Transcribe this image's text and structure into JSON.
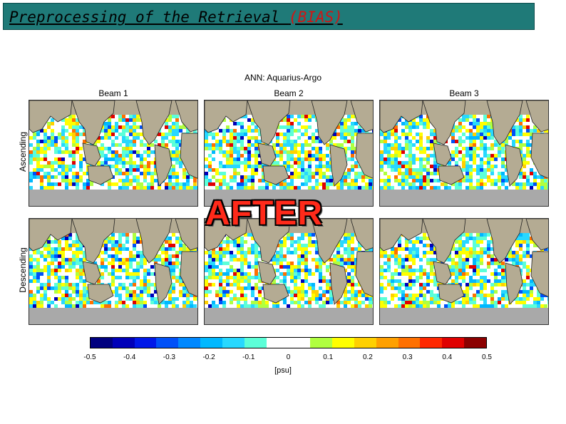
{
  "slide": {
    "title": "Preprocessing of the Retrieval ",
    "title_accent": "(BIAS)"
  },
  "figure": {
    "title": "ANN: Aquarius-Argo",
    "columns": [
      "Beam 1",
      "Beam 2",
      "Beam 3"
    ],
    "rows": [
      "Ascending",
      "Descending"
    ],
    "overlay_text": "AFTER",
    "colorbar": {
      "ticks": [
        "-0.5",
        "-0.4",
        "-0.3",
        "-0.2",
        "-0.1",
        "0",
        "0.1",
        "0.2",
        "0.3",
        "0.4",
        "0.5"
      ],
      "unit": "[psu]",
      "colors": [
        "#00007f",
        "#0000b8",
        "#0018e8",
        "#0050f8",
        "#0088ff",
        "#00b8ff",
        "#28d8ff",
        "#5cffd8",
        "#ffffff",
        "#ffffff",
        "#b0ff40",
        "#ffff00",
        "#ffd000",
        "#ffa000",
        "#ff7000",
        "#ff2800",
        "#e00000",
        "#8b0000"
      ]
    }
  }
}
